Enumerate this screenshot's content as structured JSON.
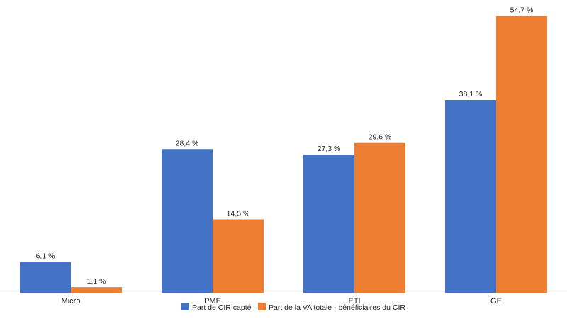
{
  "chart_data": {
    "type": "bar",
    "title": "",
    "xlabel": "",
    "ylabel": "",
    "categories": [
      "Micro",
      "PME",
      "ETI",
      "GE"
    ],
    "series": [
      {
        "name": "Part de CIR capté",
        "values": [
          6.1,
          28.4,
          27.3,
          38.1
        ],
        "labels": [
          "6,1 %",
          "28,4 %",
          "27,3 %",
          "38,1 %"
        ],
        "color": "#4472C4"
      },
      {
        "name": "Part de la VA totale - bénéficiaires du CIR",
        "values": [
          1.1,
          14.5,
          29.6,
          54.7
        ],
        "labels": [
          "1,1 %",
          "14,5 %",
          "29,6 %",
          "54,7 %"
        ],
        "color": "#ED7D31"
      }
    ],
    "ylim": [
      0,
      56
    ],
    "grid": false,
    "legend_position": "bottom",
    "axis_color": "#BFBFBF"
  }
}
